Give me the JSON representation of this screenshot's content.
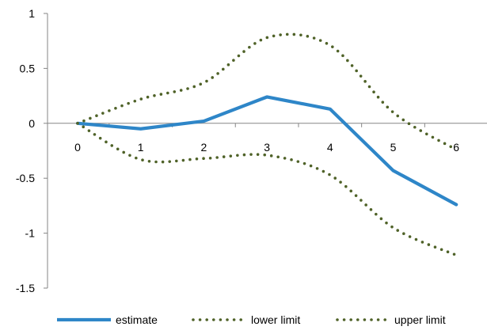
{
  "chart_data": {
    "type": "line",
    "x": [
      0,
      1,
      2,
      3,
      4,
      5,
      6
    ],
    "ylim": [
      -1.5,
      1
    ],
    "yticks": [
      "1",
      "0.5",
      "0",
      "-0.5",
      "-1",
      "-1.5"
    ],
    "ytick_values": [
      1,
      0.5,
      0,
      -0.5,
      -1,
      -1.5
    ],
    "xticks": [
      "0",
      "1",
      "2",
      "3",
      "4",
      "5",
      "6"
    ],
    "grid": false,
    "legend_position": "bottom",
    "series": [
      {
        "name": "estimate",
        "style": "solid",
        "color": "#2E86C8",
        "values": [
          0,
          -0.05,
          0.02,
          0.24,
          0.13,
          -0.43,
          -0.74
        ]
      },
      {
        "name": "lower limit",
        "style": "dotted",
        "color": "#4F6228",
        "values": [
          0,
          -0.33,
          -0.32,
          -0.29,
          -0.47,
          -0.95,
          -1.2
        ]
      },
      {
        "name": "upper limit",
        "style": "dotted",
        "color": "#4F6228",
        "values": [
          0,
          0.22,
          0.37,
          0.78,
          0.71,
          0.1,
          -0.24
        ]
      }
    ]
  }
}
